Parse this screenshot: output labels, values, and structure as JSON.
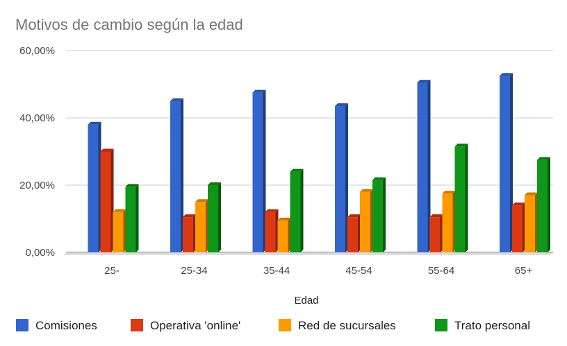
{
  "chart_data": {
    "type": "bar",
    "title": "Motivos de cambio según la edad",
    "xlabel": "Edad",
    "ylabel": "",
    "categories": [
      "25-",
      "25-34",
      "35-44",
      "45-54",
      "55-64",
      "65+"
    ],
    "y_ticks": [
      "0,00%",
      "20,00%",
      "40,00%",
      "60,00%"
    ],
    "ylim": [
      0,
      60
    ],
    "grid": true,
    "legend_position": "bottom",
    "series": [
      {
        "name": "Comisiones",
        "color": "#3366cc",
        "values": [
          38,
          45,
          47.5,
          43.5,
          50.5,
          52.5
        ]
      },
      {
        "name": "Operativa 'online'",
        "color": "#dc3912",
        "values": [
          30,
          10.5,
          12,
          10.5,
          10.5,
          14
        ]
      },
      {
        "name": "Red de sucursales",
        "color": "#ff9900",
        "values": [
          12,
          15,
          9.5,
          18,
          17.5,
          17
        ]
      },
      {
        "name": "Trato personal",
        "color": "#109618",
        "values": [
          19.5,
          20,
          24,
          21.5,
          31.5,
          27.5
        ]
      }
    ]
  }
}
